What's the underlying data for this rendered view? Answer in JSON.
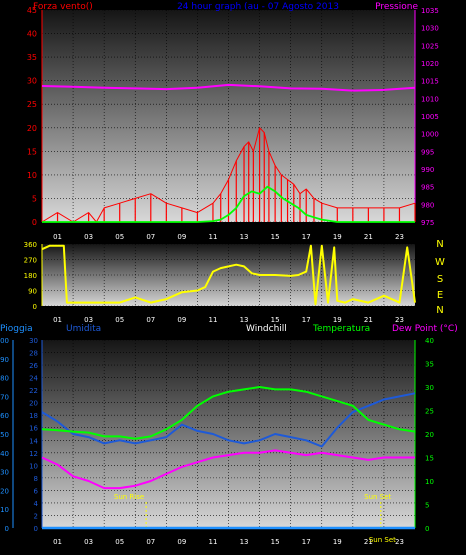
{
  "colors": {
    "wind": "#ff0000",
    "gust": "#ff0000",
    "avg_wind": "#00ff00",
    "pressure": "#ff00ff",
    "direction": "#ffff00",
    "rain": "#1e90ff",
    "humidity": "#1e5ad8",
    "windchill": "#ffffff",
    "temperature": "#00ff00",
    "dewpoint": "#ff00ff",
    "sun": "#ffff00",
    "axis_left_top": "#ff0000",
    "axis_right_top": "#ff00ff",
    "axis_rain": "#1e90ff",
    "axis_temp": "#00ff00",
    "ticks_x": "#ffffff",
    "title": "#0000ff"
  },
  "chart_data": [
    {
      "type": "line",
      "title": "24 hour graph (au - 07 Agosto 2013",
      "ylabel_left": "Forza vento()",
      "ylabel_right": "Pressione",
      "x_ticks": [
        "01",
        "03",
        "05",
        "07",
        "09",
        "11",
        "13",
        "15",
        "17",
        "19",
        "21",
        "23"
      ],
      "ylim_left": [
        0,
        45
      ],
      "yticks_left": [
        "0",
        "5",
        "10",
        "15",
        "20",
        "25",
        "30",
        "35",
        "40",
        "45"
      ],
      "ylim_right": [
        975,
        1035
      ],
      "yticks_right": [
        "975",
        "980",
        "985",
        "990",
        "995",
        "1000",
        "1005",
        "1010",
        "1015",
        "1020",
        "1025",
        "1030",
        "1035"
      ],
      "grid": true,
      "series": [
        {
          "name": "gust",
          "axis": "left",
          "x": [
            0,
            1,
            2,
            3,
            3.5,
            4,
            5,
            6,
            7,
            8,
            9,
            10,
            11,
            11.5,
            12,
            12.5,
            13,
            13.3,
            13.6,
            14,
            14.3,
            14.6,
            15,
            15.4,
            15.8,
            16.2,
            16.6,
            17,
            17.5,
            18,
            19,
            20,
            21,
            22,
            23,
            24
          ],
          "y": [
            0,
            2,
            0,
            2,
            0,
            3,
            4,
            5,
            6,
            4,
            3,
            2,
            4,
            6,
            9,
            13,
            16,
            17,
            15,
            20,
            19,
            15,
            12,
            10,
            9,
            8,
            6,
            7,
            5,
            4,
            3,
            3,
            3,
            3,
            3,
            4
          ]
        },
        {
          "name": "wind",
          "axis": "left",
          "x": [
            0,
            2,
            4,
            6,
            8,
            10,
            11,
            11.5,
            12,
            12.5,
            13,
            13.5,
            14,
            14.5,
            15,
            15.5,
            16,
            16.5,
            17,
            17.5,
            18,
            19,
            20,
            22,
            24
          ],
          "y": [
            0,
            0,
            0,
            0,
            0,
            0,
            0.2,
            0.5,
            1.5,
            3,
            5.5,
            6.5,
            6,
            7.5,
            6.5,
            5,
            4,
            3,
            1.5,
            1,
            0.5,
            0,
            0,
            0,
            0
          ]
        },
        {
          "name": "pressure",
          "axis": "right",
          "x": [
            0,
            2,
            4,
            6,
            8,
            10,
            12,
            14,
            16,
            18,
            20,
            22,
            24
          ],
          "y": [
            1013.5,
            1013.3,
            1013.0,
            1012.8,
            1012.6,
            1013.0,
            1013.8,
            1013.4,
            1012.8,
            1012.7,
            1012.2,
            1012.4,
            1013.0
          ]
        }
      ]
    },
    {
      "type": "line",
      "title": "",
      "ylim_left": [
        0,
        360
      ],
      "yticks_left": [
        "0",
        "90",
        "180",
        "270",
        "360"
      ],
      "right_labels": [
        "N",
        "W",
        "S",
        "E",
        "N"
      ],
      "x_ticks": [
        "01",
        "03",
        "05",
        "07",
        "09",
        "11",
        "13",
        "15",
        "17",
        "19",
        "21",
        "23"
      ],
      "grid": true,
      "series": [
        {
          "name": "direction",
          "x": [
            0,
            0.5,
            1,
            1.4,
            1.6,
            2,
            4,
            5,
            6,
            7,
            8,
            9,
            10,
            10.5,
            11,
            11.5,
            12,
            12.5,
            13,
            13.5,
            14,
            15,
            16,
            16.5,
            17,
            17.3,
            17.6,
            18,
            18.4,
            18.8,
            19,
            19.5,
            20,
            21,
            22,
            23,
            23.5,
            24
          ],
          "y": [
            330,
            350,
            350,
            350,
            20,
            20,
            20,
            20,
            50,
            20,
            40,
            80,
            90,
            110,
            200,
            220,
            230,
            240,
            230,
            190,
            180,
            180,
            175,
            180,
            200,
            350,
            10,
            350,
            20,
            340,
            30,
            20,
            40,
            20,
            60,
            20,
            340,
            20
          ]
        }
      ]
    },
    {
      "type": "line",
      "title": "",
      "legend": [
        "Pioggia",
        "Umidita",
        "Windchill",
        "Temperatura",
        "Dew Point (°C)"
      ],
      "ylim_rain": [
        0,
        100
      ],
      "yticks_rain": [
        "0",
        "10",
        "20",
        "30",
        "40",
        "50",
        "60",
        "70",
        "80",
        "90",
        "100"
      ],
      "ylim_left": [
        0,
        30
      ],
      "yticks_left": [
        "0",
        "2",
        "4",
        "6",
        "8",
        "10",
        "12",
        "14",
        "16",
        "18",
        "20",
        "22",
        "24",
        "26",
        "28",
        "30"
      ],
      "ylim_right": [
        0,
        40
      ],
      "yticks_right": [
        "0",
        "5",
        "10",
        "15",
        "20",
        "25",
        "30",
        "35",
        "40"
      ],
      "x_ticks": [
        "01",
        "03",
        "05",
        "07",
        "09",
        "11",
        "13",
        "15",
        "17",
        "19",
        "21",
        "23"
      ],
      "annotations": [
        "Sun Rise",
        "Sun Set",
        "Sun Set"
      ],
      "grid": true,
      "series": [
        {
          "name": "rain",
          "axis": "rain",
          "x": [
            0,
            24
          ],
          "y": [
            0,
            0
          ]
        },
        {
          "name": "humidity",
          "axis": "left",
          "x": [
            0,
            1,
            2,
            3,
            4,
            5,
            6,
            7,
            8,
            9,
            10,
            11,
            12,
            13,
            14,
            15,
            16,
            17,
            18,
            19,
            20,
            21,
            22,
            23,
            24
          ],
          "y": [
            18.5,
            17,
            15,
            14.5,
            13.5,
            14,
            13.5,
            14,
            14.5,
            16.5,
            15.5,
            15,
            14,
            13.5,
            14,
            15,
            14.5,
            14,
            13,
            16,
            18.5,
            19.5,
            20.5,
            21,
            21.5
          ]
        },
        {
          "name": "windchill",
          "axis": "right",
          "x": [
            0,
            24
          ],
          "y": [
            0,
            0
          ]
        },
        {
          "name": "temperature",
          "axis": "right",
          "x": [
            0,
            1,
            2,
            3,
            4,
            5,
            6,
            7,
            8,
            9,
            10,
            11,
            12,
            13,
            14,
            15,
            16,
            17,
            18,
            19,
            20,
            21,
            22,
            23,
            24
          ],
          "y": [
            21,
            20.8,
            20.5,
            20.3,
            19.5,
            19.5,
            19,
            19.5,
            21,
            23,
            26,
            28,
            29,
            29.5,
            30,
            29.5,
            29.5,
            29,
            28,
            27,
            26,
            23,
            22,
            21,
            20.5
          ]
        },
        {
          "name": "dewpoint",
          "axis": "right",
          "x": [
            0,
            1,
            2,
            3,
            4,
            5,
            6,
            7,
            8,
            9,
            10,
            11,
            12,
            13,
            14,
            15,
            16,
            17,
            18,
            19,
            20,
            21,
            22,
            23,
            24
          ],
          "y": [
            15,
            13.5,
            11,
            10,
            8.5,
            8.5,
            9,
            10,
            11.5,
            13,
            14,
            15,
            15.5,
            16,
            16,
            16.5,
            16,
            15.5,
            16,
            15.5,
            15,
            14.5,
            15,
            15,
            15
          ]
        }
      ]
    }
  ]
}
